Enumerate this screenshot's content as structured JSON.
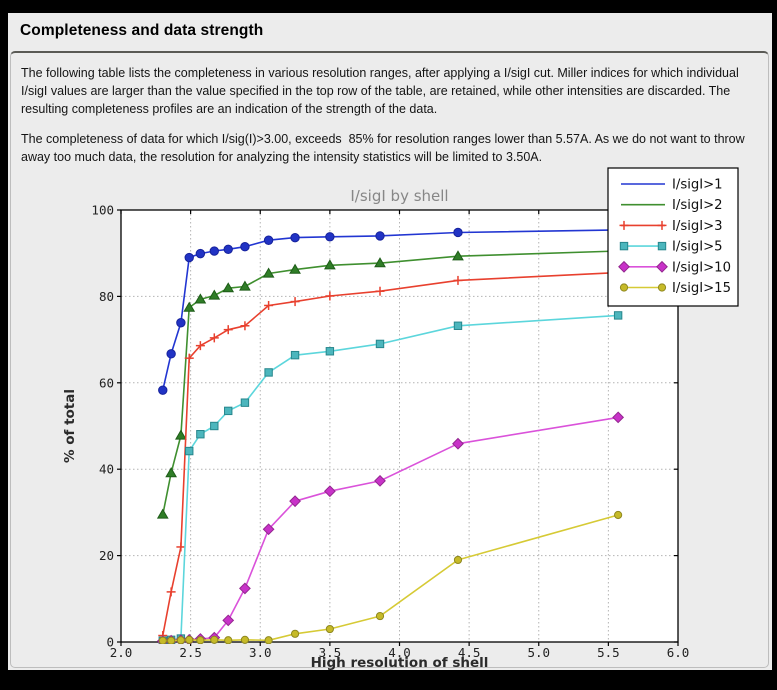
{
  "window": {
    "title": "Completeness and data strength"
  },
  "intro": {
    "paragraph1": "The following table lists the completeness in various resolution ranges, after applying a I/sigI cut. Miller indices for which individual I/sigI values are larger than the value specified in the top row of the table, are retained, while other intensities are discarded. The resulting completeness profiles are an indication of the strength of the data.",
    "paragraph2": "The completeness of data for which I/sig(I)>3.00, exceeds  85% for resolution ranges lower than 5.57A. As we do not want to throw away too much data, the resolution for analyzing the intensity statistics will be limited to 3.50A."
  },
  "theme": {
    "page_border": "#000000",
    "panel_bg": "#ececec",
    "frame_border": "#bdbdbd",
    "frame_top_border": "#5a5a55",
    "plot_bg": "#ffffff",
    "grid_color": "#b4b4b4",
    "axis_color": "#000000",
    "title_color": "#878787"
  },
  "chart_data": {
    "type": "line",
    "title": "I/sigI by shell",
    "xlabel": "High resolution of shell",
    "ylabel": "% of total",
    "xlim": [
      2.0,
      6.0
    ],
    "ylim": [
      0,
      100
    ],
    "xticks": [
      2.0,
      2.5,
      3.0,
      3.5,
      4.0,
      4.5,
      5.0,
      5.5,
      6.0
    ],
    "yticks": [
      0,
      20,
      40,
      60,
      80,
      100
    ],
    "grid": true,
    "legend_position": "upper-right-outside",
    "x": [
      2.3,
      2.36,
      2.43,
      2.49,
      2.57,
      2.67,
      2.77,
      2.89,
      3.06,
      3.25,
      3.5,
      3.86,
      4.42,
      5.57
    ],
    "series": [
      {
        "name": "I/sigI>1",
        "color": "#2236d2",
        "marker": "circle",
        "marker_size": 4.2,
        "marker_fill": "#2133c4",
        "marker_edge": "#16229c",
        "legend_marker": false,
        "values": [
          58.3,
          66.7,
          73.9,
          89.0,
          89.9,
          90.5,
          90.9,
          91.5,
          93.0,
          93.6,
          93.8,
          94.0,
          94.8,
          95.4
        ]
      },
      {
        "name": "I/sigI>2",
        "color": "#3f8f2f",
        "marker": "triangle",
        "marker_size": 5,
        "marker_fill": "#2f7d27",
        "marker_edge": "#1e5c18",
        "legend_marker": false,
        "values": [
          29.5,
          39.1,
          47.8,
          77.4,
          79.3,
          80.2,
          81.9,
          82.3,
          85.3,
          86.2,
          87.2,
          87.7,
          89.3,
          90.5
        ]
      },
      {
        "name": "I/sigI>3",
        "color": "#e8402e",
        "marker": "plus",
        "marker_size": 4.5,
        "marker_fill": "#e8402e",
        "marker_edge": "#e8402e",
        "legend_marker": true,
        "values": [
          1.5,
          11.6,
          22.0,
          65.7,
          68.6,
          70.4,
          72.3,
          73.2,
          77.9,
          78.8,
          80.1,
          81.2,
          83.7,
          85.5
        ]
      },
      {
        "name": "I/sigI>5",
        "color": "#5cd6dc",
        "marker": "square",
        "marker_size": 3.7,
        "marker_fill": "#4cb6bd",
        "marker_edge": "#27868c",
        "legend_marker": true,
        "values": [
          0.3,
          0.5,
          0.8,
          44.2,
          48.1,
          50.0,
          53.5,
          55.4,
          62.4,
          66.4,
          67.3,
          69.0,
          73.2,
          75.6
        ]
      },
      {
        "name": "I/sigI>10",
        "color": "#da52da",
        "marker": "diamond",
        "marker_size": 5.2,
        "marker_fill": "#c832c8",
        "marker_edge": "#93278f",
        "legend_marker": true,
        "values": [
          0.2,
          0.3,
          0.4,
          0.5,
          0.7,
          1.0,
          5.0,
          12.4,
          26.1,
          32.6,
          34.9,
          37.3,
          45.9,
          52.0
        ]
      },
      {
        "name": "I/sigI>15",
        "color": "#d6ca35",
        "marker": "circle",
        "marker_size": 3.6,
        "marker_fill": "#c6ba28",
        "marker_edge": "#8f8820",
        "legend_marker": true,
        "values": [
          0.3,
          0.3,
          0.4,
          0.5,
          0.4,
          0.5,
          0.4,
          0.5,
          0.4,
          1.9,
          3.0,
          6.0,
          19.0,
          29.4
        ]
      }
    ]
  }
}
